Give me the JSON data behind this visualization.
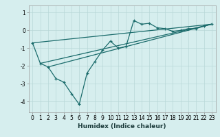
{
  "title": "",
  "xlabel": "Humidex (Indice chaleur)",
  "ylabel": "",
  "background_color": "#d6eeee",
  "grid_color": "#b8d8d8",
  "line_color": "#1a6b6b",
  "xlim": [
    -0.5,
    23.5
  ],
  "ylim": [
    -4.6,
    1.4
  ],
  "yticks": [
    1,
    0,
    -1,
    -2,
    -3,
    -4
  ],
  "xticks": [
    0,
    1,
    2,
    3,
    4,
    5,
    6,
    7,
    8,
    9,
    10,
    11,
    12,
    13,
    14,
    15,
    16,
    17,
    18,
    19,
    20,
    21,
    22,
    23
  ],
  "series1_x": [
    0,
    1,
    2,
    3,
    4,
    5,
    6,
    7,
    8,
    9,
    10,
    11,
    12,
    13,
    14,
    15,
    16,
    17,
    18,
    19,
    20,
    21,
    22,
    23
  ],
  "series1_y": [
    -0.7,
    -1.85,
    -2.05,
    -2.7,
    -2.9,
    -3.55,
    -4.15,
    -2.4,
    -1.75,
    -1.1,
    -0.6,
    -1.0,
    -0.9,
    0.55,
    0.35,
    0.4,
    0.15,
    0.1,
    -0.05,
    0.0,
    0.1,
    0.1,
    0.25,
    0.35
  ],
  "series2_x": [
    0,
    23
  ],
  "series2_y": [
    -0.7,
    0.35
  ],
  "series3_x": [
    1,
    23
  ],
  "series3_y": [
    -1.85,
    0.35
  ],
  "series4_x": [
    2,
    23
  ],
  "series4_y": [
    -2.05,
    0.35
  ],
  "tick_fontsize": 5.5,
  "xlabel_fontsize": 6.5,
  "spine_color": "#999999"
}
